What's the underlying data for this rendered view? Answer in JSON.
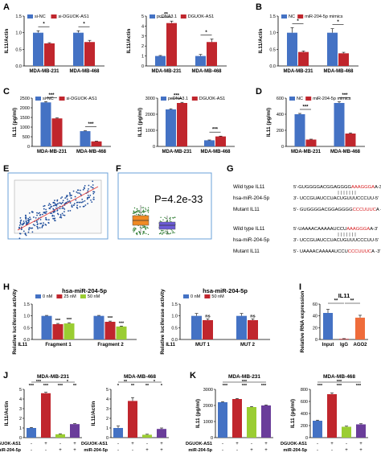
{
  "colors": {
    "blue": "#4472c4",
    "red": "#c0262d",
    "green": "#9acd32",
    "purple": "#6a3d9a",
    "orange": "#ef6c3b",
    "mutred": "#d7191c",
    "sig": "#000000"
  },
  "figure": {
    "panel_letters": {
      "A": "A",
      "B": "B",
      "C": "C",
      "D": "D",
      "E": "E",
      "F": "F",
      "G": "G",
      "H": "H",
      "I": "I",
      "J": "J",
      "K": "K"
    },
    "A": {
      "charts": [
        {
          "ylabel": "IL11/Actin",
          "yticks": [
            "0.0",
            "0.5",
            "1.0",
            "1.5"
          ],
          "ymax": 1.5,
          "legend": [
            "si-NC",
            "si-DGUOK-AS1"
          ],
          "colors": [
            "blue",
            "red"
          ],
          "categories": [
            "MDA-MB-231",
            "MDA-MB-468"
          ],
          "series": [
            {
              "values": [
                1.0,
                1.0
              ]
            },
            {
              "values": [
                0.68,
                0.72
              ]
            }
          ],
          "errors": [
            [
              0.06,
              0.06
            ],
            [
              0.02,
              0.05
            ]
          ],
          "sig": [
            "*",
            "*"
          ]
        },
        {
          "ylabel": "IL11/Actin",
          "yticks": [
            "0",
            "1",
            "2",
            "3",
            "4",
            "5"
          ],
          "ymax": 5,
          "legend": [
            "pcDNA3.1",
            "DGUOK-AS1"
          ],
          "colors": [
            "blue",
            "red"
          ],
          "categories": [
            "MDA-MB-231",
            "MDA-MB-468"
          ],
          "series": [
            {
              "values": [
                1.0,
                1.0
              ]
            },
            {
              "values": [
                4.3,
                2.4
              ]
            }
          ],
          "errors": [
            [
              0.05,
              0.15
            ],
            [
              0.2,
              0.3
            ]
          ],
          "sig": [
            "**",
            "*"
          ]
        }
      ]
    },
    "B": {
      "charts": [
        {
          "ylabel": "IL11/Actin",
          "yticks": [
            "0.0",
            "0.5",
            "1.0",
            "1.5"
          ],
          "ymax": 1.5,
          "legend": [
            "NC",
            "miR-204-5p mimics"
          ],
          "colors": [
            "blue",
            "red"
          ],
          "categories": [
            "MDA-MB-231",
            "MDA-MB-468"
          ],
          "series": [
            {
              "values": [
                1.0,
                1.0
              ]
            },
            {
              "values": [
                0.42,
                0.38
              ]
            }
          ],
          "errors": [
            [
              0.15,
              0.12
            ],
            [
              0.03,
              0.03
            ]
          ],
          "sig": [
            "*",
            "*"
          ]
        }
      ]
    },
    "C": {
      "charts": [
        {
          "ylabel": "IL11 (pg/ml)",
          "yticks": [
            "0",
            "500",
            "1000",
            "1500",
            "2000",
            "2500"
          ],
          "ymax": 2500,
          "legend": [
            "si-NC",
            "si-DGUOK-AS1"
          ],
          "colors": [
            "blue",
            "red"
          ],
          "categories": [
            "MDA-MB-231",
            "MDA-MB-468"
          ],
          "series": [
            {
              "values": [
                2280,
                790
              ]
            },
            {
              "values": [
                1450,
                260
              ]
            }
          ],
          "errors": [
            [
              40,
              20
            ],
            [
              30,
              15
            ]
          ],
          "sig": [
            "***",
            "***"
          ]
        },
        {
          "ylabel": "IL11 (pg/ml)",
          "yticks": [
            "0",
            "1000",
            "2000",
            "3000"
          ],
          "ymax": 3000,
          "legend": [
            "pcDNA3.1",
            "DGUOK-AS1"
          ],
          "colors": [
            "blue",
            "red"
          ],
          "categories": [
            "MDA-MB-231",
            "MDA-MB-468"
          ],
          "series": [
            {
              "values": [
                2300,
                380
              ]
            },
            {
              "values": [
                2700,
                620
              ]
            }
          ],
          "errors": [
            [
              40,
              20
            ],
            [
              40,
              20
            ]
          ],
          "sig": [
            "***",
            "***"
          ]
        }
      ]
    },
    "D": {
      "charts": [
        {
          "ylabel": "IL11 (pg/ml)",
          "yticks": [
            "0",
            "200",
            "400",
            "600"
          ],
          "ymax": 600,
          "legend": [
            "NC",
            "miR-204-5p mimics"
          ],
          "colors": [
            "blue",
            "red"
          ],
          "categories": [
            "MDA-MB-231",
            "MDA-MB-468"
          ],
          "series": [
            {
              "values": [
                400,
                540
              ]
            },
            {
              "values": [
                85,
                160
              ]
            }
          ],
          "errors": [
            [
              10,
              15
            ],
            [
              5,
              8
            ]
          ],
          "sig": [
            "***",
            "***"
          ]
        }
      ]
    },
    "F": {
      "pvalue": "P=4.2e-33"
    },
    "G": {
      "block1": [
        {
          "label": "Wild type IL11",
          "seq": [
            "5'-GUGGGGACGGAGGGG",
            "AAAGGGA",
            "A-3'"
          ],
          "hl": "red"
        },
        {
          "label": "hsa-miR-204-5p",
          "seq": [
            "3'- UCCGUAUCCUACUG",
            "UUUCCCU",
            "U-5'"
          ],
          "hl": "none"
        },
        {
          "label": "Mutant IL11",
          "seq": [
            "5'- GUGGGGACGGAGGGG",
            "CCCUUUC",
            "A -3'"
          ],
          "hl": "red"
        }
      ],
      "block2": [
        {
          "label": "Wild type IL11",
          "seq": [
            "5'-UAAAACAAAAAUCCU",
            "AAAGGGA",
            "A-3'"
          ],
          "hl": "red"
        },
        {
          "label": "hsa-miR-204-5p",
          "seq": [
            "3'- UCCGUAUCCUACUG",
            "UUUCCCU",
            "U-5'"
          ],
          "hl": "none"
        },
        {
          "label": "Mutant IL11",
          "seq": [
            "5'- UAAAACAAAAAUCCU",
            "CCCUUUC",
            "A -3'"
          ],
          "hl": "red"
        }
      ]
    },
    "H": {
      "charts": [
        {
          "title": "hsa-miR-204-5p",
          "ylabel": "Relative luciferase activity",
          "yticks": [
            "0.0",
            "0.5",
            "1.0",
            "1.5"
          ],
          "ymax": 1.5,
          "legend": [
            "0 nM",
            "25 nM",
            "50 nM"
          ],
          "colors": [
            "blue",
            "red",
            "green"
          ],
          "axis_lead": "IL11",
          "categories": [
            "Fragment 1",
            "Fragment 2"
          ],
          "series": [
            {
              "values": [
                1.0,
                1.0
              ]
            },
            {
              "values": [
                0.65,
                0.75
              ]
            },
            {
              "values": [
                0.68,
                0.55
              ]
            }
          ],
          "errors": [
            [
              0.02,
              0.02
            ],
            [
              0.03,
              0.03
            ],
            [
              0.03,
              0.02
            ]
          ],
          "sig_series": [
            [
              "",
              ""
            ],
            [
              "***",
              "***"
            ],
            [
              "***",
              "***"
            ]
          ]
        },
        {
          "title": "hsa-miR-204-5p",
          "ylabel": "Relative luciferase activity",
          "yticks": [
            "0.0",
            "0.5",
            "1.0",
            "1.5"
          ],
          "ymax": 1.5,
          "legend": [
            "0 nM",
            "50 nM"
          ],
          "colors": [
            "blue",
            "red"
          ],
          "axis_lead": "IL11",
          "categories": [
            "MUT 1",
            "MUT 2"
          ],
          "series": [
            {
              "values": [
                1.0,
                1.0
              ]
            },
            {
              "values": [
                0.82,
                0.82
              ]
            }
          ],
          "errors": [
            [
              0.1,
              0.1
            ],
            [
              0.05,
              0.05
            ]
          ],
          "sig_series": [
            [
              "",
              ""
            ],
            [
              "ns",
              "ns"
            ]
          ]
        }
      ]
    },
    "I": {
      "title": "IL11",
      "ylabel": "Relative RNA expression",
      "yticks": [
        "0",
        "20",
        "40",
        "60"
      ],
      "ymax": 60,
      "categories": [
        "Input",
        "IgG",
        "AGO2"
      ],
      "values": [
        45,
        1,
        37
      ],
      "errors": [
        6,
        0.5,
        4
      ],
      "colors": [
        "blue",
        "red",
        "orange"
      ],
      "sig": [
        "**",
        "**"
      ]
    },
    "J": {
      "charts": [
        {
          "title": "MDA-MB-231",
          "ylabel": "IL11/Actin",
          "yticks": [
            "0",
            "1",
            "2",
            "3",
            "4",
            "5"
          ],
          "ymax": 5,
          "values": [
            1.0,
            4.6,
            0.35,
            1.4
          ],
          "errors": [
            0.05,
            0.1,
            0.05,
            0.05
          ],
          "colors": [
            "blue",
            "red",
            "green",
            "purple"
          ],
          "sig_row1": [
            "***",
            "***",
            "***",
            "**"
          ],
          "sig_row2": [
            "***",
            "*"
          ],
          "rows": [
            {
              "label": "DGUOK-AS1",
              "vals": [
                "-",
                "+",
                "-",
                "+"
              ]
            },
            {
              "label": "miR-204-5p",
              "vals": [
                "-",
                "-",
                "+",
                "+"
              ]
            }
          ]
        },
        {
          "title": "MDA-MB-468",
          "ylabel": "IL11/Actin",
          "yticks": [
            "0",
            "1",
            "2",
            "3",
            "4",
            "5"
          ],
          "ymax": 5,
          "values": [
            1.0,
            3.8,
            0.3,
            0.9
          ],
          "errors": [
            0.2,
            0.35,
            0.05,
            0.1
          ],
          "colors": [
            "blue",
            "red",
            "green",
            "purple"
          ],
          "sig_row1": [
            "*",
            "**",
            "**",
            "*"
          ],
          "sig_row2": [
            "**",
            "*"
          ],
          "rows": [
            {
              "label": "DGUOK-AS1",
              "vals": [
                "-",
                "+",
                "-",
                "+"
              ]
            },
            {
              "label": "miR-204-5p",
              "vals": [
                "-",
                "-",
                "+",
                "+"
              ]
            }
          ]
        }
      ]
    },
    "K": {
      "charts": [
        {
          "title": "MDA-MB-231",
          "ylabel": "IL11 (pg/ml)",
          "yticks": [
            "0",
            "1000",
            "2000",
            "3000"
          ],
          "ymax": 3000,
          "values": [
            2200,
            2400,
            1900,
            2000
          ],
          "errors": [
            30,
            30,
            30,
            30
          ],
          "colors": [
            "blue",
            "red",
            "green",
            "purple"
          ],
          "sig_row1": [
            "***",
            "***",
            "***"
          ],
          "sig_row2": [
            "***"
          ],
          "rows": [
            {
              "label": "DGUOK-AS1",
              "vals": [
                "-",
                "+",
                "-",
                "+"
              ]
            },
            {
              "label": "miR-204-5p",
              "vals": [
                "-",
                "-",
                "+",
                "+"
              ]
            }
          ]
        },
        {
          "title": "MDA-MB-468",
          "ylabel": "IL11 (pg/ml)",
          "yticks": [
            "0",
            "200",
            "400",
            "600",
            "800"
          ],
          "ymax": 800,
          "values": [
            280,
            720,
            180,
            220
          ],
          "errors": [
            10,
            20,
            10,
            10
          ],
          "colors": [
            "blue",
            "red",
            "green",
            "purple"
          ],
          "sig_row1": [
            "***",
            "***",
            "***"
          ],
          "sig_row2": [
            "***"
          ],
          "rows": [
            {
              "label": "DGUOK-AS1",
              "vals": [
                "-",
                "+",
                "-",
                "+"
              ]
            },
            {
              "label": "miR-204-5p",
              "vals": [
                "-",
                "-",
                "+",
                "+"
              ]
            }
          ]
        }
      ]
    }
  }
}
